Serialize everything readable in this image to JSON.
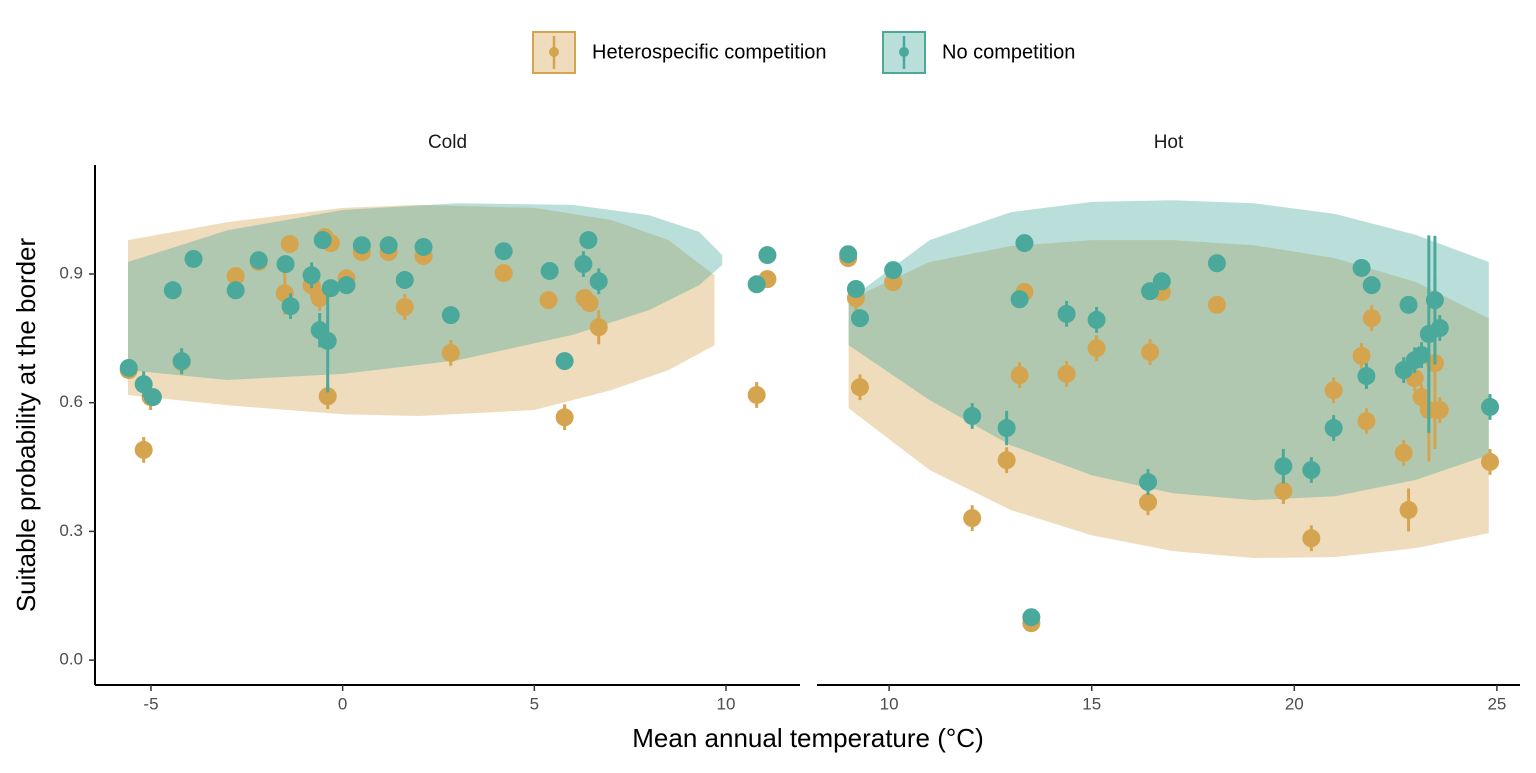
{
  "chart_data": [
    {
      "type": "scatter",
      "title": "Cold",
      "xlabel": "Mean annual temperature (°C)",
      "ylabel": "Suitable probability at the border",
      "xlim": [
        -6.46,
        11.93
      ],
      "xticks": [
        -5,
        0,
        5,
        10
      ],
      "ylim": [
        -0.058,
        1.154
      ],
      "yticks": [
        {
          "value": 0,
          "label": "0.0"
        },
        0.3,
        0.6,
        0.9
      ],
      "series": [
        {
          "name": "Heterospecific competition",
          "color": "#d4a44f",
          "x": [
            -5.58,
            -5.01,
            -5.19,
            -4.2,
            -2.79,
            -2.19,
            -1.51,
            -1.38,
            -0.81,
            -0.6,
            -0.47,
            -0.31,
            -0.39,
            0.1,
            0.5,
            1.2,
            1.62,
            2.11,
            2.82,
            4.2,
            5.37,
            5.79,
            6.31,
            6.44,
            6.68,
            10.8,
            11.08
          ],
          "values": [
            0.676,
            0.613,
            0.49,
            0.695,
            0.895,
            0.928,
            0.855,
            0.97,
            0.874,
            0.844,
            0.986,
            0.972,
            0.615,
            0.89,
            0.951,
            0.951,
            0.823,
            0.942,
            0.716,
            0.902,
            0.839,
            0.566,
            0.844,
            0.832,
            0.776,
            0.618,
            0.888
          ],
          "yerr": [
            0.02,
            0.03,
            0.03,
            0.03,
            0.02,
            0.02,
            0.05,
            0.02,
            0.03,
            0.03,
            0.02,
            0.02,
            0.03,
            0.02,
            0.02,
            0.02,
            0.03,
            0.02,
            0.03,
            0.02,
            0.02,
            0.03,
            0.02,
            0.02,
            0.04,
            0.03,
            0.02
          ],
          "band_x": [
            -5.6,
            -3,
            0,
            2,
            5,
            7,
            8.5,
            9.7
          ],
          "band_upper": [
            0.979,
            1.021,
            1.054,
            1.061,
            1.054,
            1.026,
            0.979,
            0.897
          ],
          "band_lower": [
            0.618,
            0.594,
            0.573,
            0.569,
            0.583,
            0.629,
            0.676,
            0.734
          ]
        },
        {
          "name": "No competition",
          "color": "#4aa99b",
          "x": [
            -5.58,
            -5.19,
            -4.95,
            -4.43,
            -4.2,
            -3.89,
            -2.79,
            -2.19,
            -1.49,
            -1.36,
            -0.81,
            -0.6,
            -0.52,
            -0.39,
            -0.31,
            0.1,
            0.5,
            1.2,
            1.62,
            2.11,
            2.82,
            4.2,
            5.4,
            5.79,
            6.28,
            6.41,
            6.68,
            10.8,
            11.08
          ],
          "values": [
            0.681,
            0.643,
            0.613,
            0.862,
            0.697,
            0.935,
            0.862,
            0.932,
            0.923,
            0.825,
            0.897,
            0.769,
            0.979,
            0.744,
            0.867,
            0.874,
            0.967,
            0.967,
            0.886,
            0.963,
            0.804,
            0.953,
            0.907,
            0.697,
            0.923,
            0.979,
            0.883,
            0.876,
            0.944
          ],
          "yerr": [
            0.02,
            0.03,
            0.02,
            0.02,
            0.03,
            0.02,
            0.02,
            0.02,
            0.02,
            0.03,
            0.03,
            0.04,
            0.02,
            0.12,
            0.02,
            0.02,
            0.02,
            0.02,
            0.02,
            0.02,
            0.02,
            0.02,
            0.02,
            0.02,
            0.03,
            0.02,
            0.03,
            0.02,
            0.02
          ],
          "band_x": [
            -5.6,
            -3,
            0,
            3,
            6,
            8,
            9.3,
            9.9
          ],
          "band_upper": [
            0.928,
            1.002,
            1.049,
            1.065,
            1.061,
            1.037,
            0.998,
            0.944
          ],
          "band_lower": [
            0.676,
            0.653,
            0.667,
            0.699,
            0.758,
            0.816,
            0.874,
            0.921
          ]
        }
      ]
    },
    {
      "type": "scatter",
      "title": "Hot",
      "xlim": [
        8.22,
        25.57
      ],
      "xticks": [
        10,
        15,
        20,
        25
      ],
      "ylim": [
        -0.058,
        1.154
      ],
      "series": [
        {
          "color": "#d4a44f",
          "x": [
            8.99,
            9.18,
            9.28,
            10.1,
            12.05,
            12.9,
            13.22,
            13.34,
            13.51,
            14.38,
            15.12,
            16.39,
            16.44,
            16.73,
            18.09,
            19.73,
            20.42,
            20.97,
            21.66,
            21.78,
            21.91,
            22.7,
            22.82,
            22.97,
            23.14,
            23.32,
            23.47,
            23.59,
            24.83
          ],
          "values": [
            0.937,
            0.844,
            0.636,
            0.881,
            0.331,
            0.466,
            0.664,
            0.858,
            0.086,
            0.667,
            0.727,
            0.368,
            0.718,
            0.858,
            0.828,
            0.394,
            0.284,
            0.629,
            0.709,
            0.557,
            0.797,
            0.483,
            0.35,
            0.657,
            0.613,
            0.583,
            0.692,
            0.583,
            0.462
          ],
          "yerr": [
            0.02,
            0.03,
            0.03,
            0.02,
            0.03,
            0.03,
            0.03,
            0.02,
            0.02,
            0.03,
            0.03,
            0.03,
            0.03,
            0.02,
            0.02,
            0.03,
            0.03,
            0.03,
            0.03,
            0.03,
            0.03,
            0.03,
            0.05,
            0.03,
            0.03,
            0.12,
            0.2,
            0.03,
            0.03
          ],
          "band_x": [
            9,
            11,
            13,
            15,
            17,
            19,
            21,
            23,
            24.8
          ],
          "band_upper": [
            0.839,
            0.928,
            0.965,
            0.979,
            0.979,
            0.967,
            0.937,
            0.881,
            0.797
          ],
          "band_lower": [
            0.587,
            0.443,
            0.35,
            0.291,
            0.254,
            0.238,
            0.24,
            0.261,
            0.296
          ]
        },
        {
          "color": "#4aa99b",
          "x": [
            8.99,
            9.18,
            9.28,
            10.1,
            12.05,
            12.9,
            13.22,
            13.34,
            13.51,
            14.38,
            15.12,
            16.39,
            16.44,
            16.73,
            18.09,
            19.73,
            20.42,
            20.97,
            21.66,
            21.78,
            21.91,
            22.7,
            22.82,
            22.97,
            23.14,
            23.32,
            23.47,
            23.59,
            24.83
          ],
          "values": [
            0.946,
            0.865,
            0.797,
            0.909,
            0.569,
            0.541,
            0.841,
            0.972,
            0.1,
            0.807,
            0.793,
            0.415,
            0.86,
            0.883,
            0.925,
            0.452,
            0.443,
            0.541,
            0.914,
            0.662,
            0.874,
            0.676,
            0.828,
            0.699,
            0.711,
            0.76,
            0.839,
            0.774,
            0.59
          ],
          "yerr": [
            0.02,
            0.02,
            0.02,
            0.02,
            0.03,
            0.04,
            0.02,
            0.02,
            0.02,
            0.03,
            0.03,
            0.03,
            0.02,
            0.02,
            0.02,
            0.04,
            0.03,
            0.03,
            0.02,
            0.03,
            0.02,
            0.03,
            0.02,
            0.03,
            0.03,
            0.23,
            0.15,
            0.03,
            0.03
          ],
          "band_x": [
            9,
            11,
            13,
            15,
            17,
            19,
            21,
            23,
            24.8
          ],
          "band_upper": [
            0.839,
            0.979,
            1.044,
            1.068,
            1.072,
            1.065,
            1.04,
            0.991,
            0.928
          ],
          "band_lower": [
            0.734,
            0.606,
            0.501,
            0.431,
            0.389,
            0.373,
            0.382,
            0.42,
            0.478
          ]
        }
      ]
    }
  ]
}
